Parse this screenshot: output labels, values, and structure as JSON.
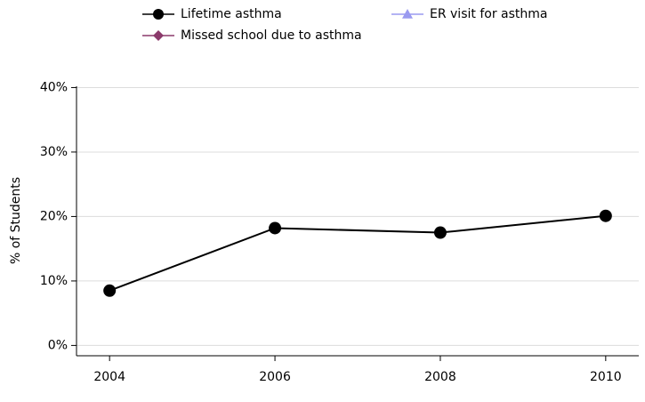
{
  "chart_data": {
    "type": "line",
    "y_label": "% of Students",
    "x": [
      2004,
      2006,
      2008,
      2010
    ],
    "series": [
      {
        "name": "Lifetime asthma",
        "color": "#000000",
        "marker": "circle",
        "values": [
          8.5,
          18.2,
          17.5,
          20.1
        ]
      },
      {
        "name": "ER visit for asthma",
        "color": "#9a9af0",
        "marker": "triangle",
        "values": [
          null,
          null,
          null,
          null
        ]
      },
      {
        "name": "Missed school due to asthma",
        "color": "#8b3a6b",
        "marker": "diamond",
        "values": [
          null,
          null,
          null,
          null
        ]
      }
    ],
    "xlim": [
      2003.6,
      2010.4
    ],
    "xticks": [
      2004,
      2006,
      2008,
      2010
    ],
    "ylim": [
      -1.6,
      40.2
    ],
    "yticks": [
      {
        "value": 0,
        "label": "0%"
      },
      {
        "value": 10,
        "label": "10%"
      },
      {
        "value": 20,
        "label": "20%"
      },
      {
        "value": 30,
        "label": "30%"
      },
      {
        "value": 40,
        "label": "40%"
      }
    ],
    "grid": true
  }
}
